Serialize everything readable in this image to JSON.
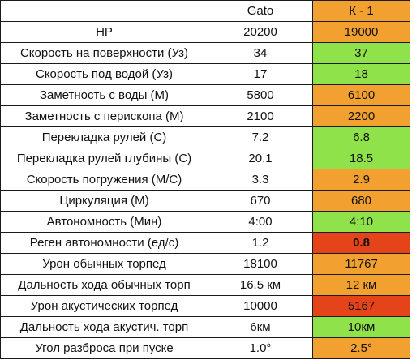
{
  "colors": {
    "better": "#8fe24a",
    "worse": "#f2a02f",
    "much_worse": "#e5431a",
    "header_k1": "#f2a02f",
    "neutral": "#ffffff",
    "border": "#1a1a1a"
  },
  "header": {
    "label": "",
    "gato": "Gato",
    "k1": "К - 1"
  },
  "rows": [
    {
      "label": "HP",
      "gato": "20200",
      "k1": "19000",
      "k1_status": "worse",
      "bold": false
    },
    {
      "label": "Скорость на поверхности (Уз)",
      "gato": "34",
      "k1": "37",
      "k1_status": "better",
      "bold": false
    },
    {
      "label": "Скорость под водой (Уз)",
      "gato": "17",
      "k1": "18",
      "k1_status": "better",
      "bold": false
    },
    {
      "label": "Заметность с воды (М)",
      "gato": "5800",
      "k1": "6100",
      "k1_status": "worse",
      "bold": false
    },
    {
      "label": "Заметность с перископа (М)",
      "gato": "2100",
      "k1": "2200",
      "k1_status": "worse",
      "bold": false
    },
    {
      "label": "Перекладка рулей (С)",
      "gato": "7.2",
      "k1": "6.8",
      "k1_status": "better",
      "bold": false
    },
    {
      "label": "Перекладка рулей глубины (С)",
      "gato": "20.1",
      "k1": "18.5",
      "k1_status": "better",
      "bold": false
    },
    {
      "label": "Скорость погружения (М/С)",
      "gato": "3.3",
      "k1": "2.9",
      "k1_status": "worse",
      "bold": false
    },
    {
      "label": "Циркуляция (М)",
      "gato": "670",
      "k1": "680",
      "k1_status": "worse",
      "bold": false
    },
    {
      "label": "Автономность (Мин)",
      "gato": "4:00",
      "k1": "4:10",
      "k1_status": "better",
      "bold": false
    },
    {
      "label": "Реген автономности (ед/с)",
      "gato": "1.2",
      "k1": "0.8",
      "k1_status": "much_worse",
      "bold": true
    },
    {
      "label": "Урон обычных торпед",
      "gato": "18100",
      "k1": "11767",
      "k1_status": "worse",
      "bold": false
    },
    {
      "label": "Дальность хода обычных торп",
      "gato": "16.5 км",
      "k1": "12 км",
      "k1_status": "worse",
      "bold": false
    },
    {
      "label": "Урон акустических торпед",
      "gato": "10000",
      "k1": "5167",
      "k1_status": "much_worse",
      "bold": false
    },
    {
      "label": "Дальность хода акустич. торп",
      "gato": "6км",
      "k1": "10км",
      "k1_status": "better",
      "bold": false
    },
    {
      "label": "Угол разброса при пуске",
      "gato": "1.0°",
      "k1": "2.5°",
      "k1_status": "worse",
      "bold": false
    }
  ]
}
